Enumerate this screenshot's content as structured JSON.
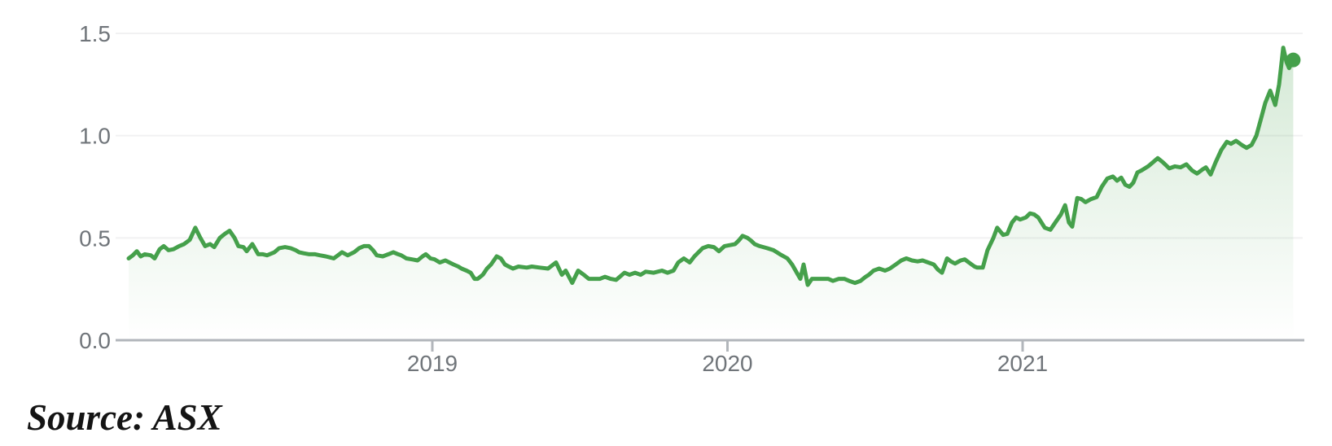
{
  "figure": {
    "source_note": "Source: ASX"
  },
  "chart_data": {
    "type": "line",
    "title": "",
    "xlabel": "",
    "ylabel": "",
    "x_tick_labels": [
      "2019",
      "2020",
      "2021"
    ],
    "x_tick_values": [
      2019,
      2020,
      2021
    ],
    "y_tick_labels": [
      "0.0",
      "0.5",
      "1.0",
      "1.5"
    ],
    "y_tick_values": [
      0,
      0.5,
      1.0,
      1.5
    ],
    "ylim": [
      0,
      1.5
    ],
    "xlim": [
      2017.95,
      2021.95
    ],
    "grid": true,
    "legend": false,
    "end_marker": {
      "x": 2021.917,
      "y": 1.37
    },
    "colors": {
      "line": "#45a04b",
      "fill_top": "rgba(69,160,75,0.24)",
      "fill_bottom": "rgba(69,160,75,0)",
      "grid": "#f1f1f2",
      "axis": "#b2b6bb",
      "tick_label": "#70757a",
      "source_text": "#141414"
    },
    "series": [
      {
        "points": [
          [
            2017.971,
            0.4
          ],
          [
            2017.985,
            0.415
          ],
          [
            2017.999,
            0.435
          ],
          [
            2018.012,
            0.41
          ],
          [
            2018.026,
            0.42
          ],
          [
            2018.046,
            0.415
          ],
          [
            2018.059,
            0.4
          ],
          [
            2018.076,
            0.445
          ],
          [
            2018.09,
            0.46
          ],
          [
            2018.106,
            0.44
          ],
          [
            2018.123,
            0.445
          ],
          [
            2018.142,
            0.46
          ],
          [
            2018.159,
            0.47
          ],
          [
            2018.178,
            0.49
          ],
          [
            2018.197,
            0.55
          ],
          [
            2018.214,
            0.5
          ],
          [
            2018.23,
            0.46
          ],
          [
            2018.247,
            0.47
          ],
          [
            2018.261,
            0.455
          ],
          [
            2018.28,
            0.5
          ],
          [
            2018.297,
            0.52
          ],
          [
            2018.313,
            0.535
          ],
          [
            2018.33,
            0.5
          ],
          [
            2018.343,
            0.46
          ],
          [
            2018.36,
            0.455
          ],
          [
            2018.371,
            0.435
          ],
          [
            2018.39,
            0.47
          ],
          [
            2018.41,
            0.42
          ],
          [
            2018.426,
            0.42
          ],
          [
            2018.44,
            0.415
          ],
          [
            2018.465,
            0.43
          ],
          [
            2018.481,
            0.45
          ],
          [
            2018.501,
            0.455
          ],
          [
            2018.52,
            0.45
          ],
          [
            2018.537,
            0.44
          ],
          [
            2018.548,
            0.43
          ],
          [
            2018.564,
            0.425
          ],
          [
            2018.583,
            0.42
          ],
          [
            2018.603,
            0.42
          ],
          [
            2018.619,
            0.415
          ],
          [
            2018.639,
            0.41
          ],
          [
            2018.652,
            0.405
          ],
          [
            2018.666,
            0.4
          ],
          [
            2018.68,
            0.415
          ],
          [
            2018.694,
            0.43
          ],
          [
            2018.713,
            0.415
          ],
          [
            2018.735,
            0.43
          ],
          [
            2018.752,
            0.45
          ],
          [
            2018.768,
            0.46
          ],
          [
            2018.785,
            0.46
          ],
          [
            2018.799,
            0.44
          ],
          [
            2018.812,
            0.415
          ],
          [
            2018.832,
            0.41
          ],
          [
            2018.851,
            0.42
          ],
          [
            2018.868,
            0.43
          ],
          [
            2018.884,
            0.42
          ],
          [
            2018.895,
            0.415
          ],
          [
            2018.912,
            0.4
          ],
          [
            2018.931,
            0.395
          ],
          [
            2018.95,
            0.39
          ],
          [
            2018.967,
            0.41
          ],
          [
            2018.978,
            0.42
          ],
          [
            2018.994,
            0.4
          ],
          [
            2019.008,
            0.395
          ],
          [
            2019.025,
            0.38
          ],
          [
            2019.044,
            0.39
          ],
          [
            2019.058,
            0.38
          ],
          [
            2019.072,
            0.37
          ],
          [
            2019.088,
            0.36
          ],
          [
            2019.099,
            0.35
          ],
          [
            2019.116,
            0.34
          ],
          [
            2019.13,
            0.33
          ],
          [
            2019.143,
            0.3
          ],
          [
            2019.154,
            0.3
          ],
          [
            2019.171,
            0.32
          ],
          [
            2019.185,
            0.35
          ],
          [
            2019.199,
            0.37
          ],
          [
            2019.218,
            0.41
          ],
          [
            2019.232,
            0.4
          ],
          [
            2019.246,
            0.37
          ],
          [
            2019.259,
            0.36
          ],
          [
            2019.273,
            0.35
          ],
          [
            2019.292,
            0.36
          ],
          [
            2019.32,
            0.355
          ],
          [
            2019.337,
            0.36
          ],
          [
            2019.364,
            0.355
          ],
          [
            2019.392,
            0.35
          ],
          [
            2019.419,
            0.38
          ],
          [
            2019.439,
            0.32
          ],
          [
            2019.452,
            0.34
          ],
          [
            2019.474,
            0.28
          ],
          [
            2019.494,
            0.34
          ],
          [
            2019.513,
            0.32
          ],
          [
            2019.53,
            0.3
          ],
          [
            2019.549,
            0.3
          ],
          [
            2019.568,
            0.3
          ],
          [
            2019.585,
            0.31
          ],
          [
            2019.604,
            0.3
          ],
          [
            2019.623,
            0.295
          ],
          [
            2019.651,
            0.33
          ],
          [
            2019.668,
            0.32
          ],
          [
            2019.687,
            0.33
          ],
          [
            2019.706,
            0.32
          ],
          [
            2019.723,
            0.335
          ],
          [
            2019.75,
            0.33
          ],
          [
            2019.778,
            0.34
          ],
          [
            2019.797,
            0.33
          ],
          [
            2019.817,
            0.34
          ],
          [
            2019.833,
            0.38
          ],
          [
            2019.852,
            0.4
          ],
          [
            2019.872,
            0.38
          ],
          [
            2019.888,
            0.41
          ],
          [
            2019.902,
            0.43
          ],
          [
            2019.916,
            0.45
          ],
          [
            2019.935,
            0.46
          ],
          [
            2019.954,
            0.455
          ],
          [
            2019.971,
            0.435
          ],
          [
            2019.99,
            0.46
          ],
          [
            2020.01,
            0.465
          ],
          [
            2020.026,
            0.47
          ],
          [
            2020.04,
            0.49
          ],
          [
            2020.051,
            0.51
          ],
          [
            2020.068,
            0.5
          ],
          [
            2020.081,
            0.485
          ],
          [
            2020.092,
            0.47
          ],
          [
            2020.109,
            0.46
          ],
          [
            2020.134,
            0.45
          ],
          [
            2020.156,
            0.44
          ],
          [
            2020.178,
            0.42
          ],
          [
            2020.203,
            0.4
          ],
          [
            2020.219,
            0.37
          ],
          [
            2020.239,
            0.32
          ],
          [
            2020.247,
            0.3
          ],
          [
            2020.258,
            0.37
          ],
          [
            2020.272,
            0.27
          ],
          [
            2020.286,
            0.3
          ],
          [
            2020.302,
            0.3
          ],
          [
            2020.321,
            0.3
          ],
          [
            2020.341,
            0.3
          ],
          [
            2020.357,
            0.29
          ],
          [
            2020.377,
            0.3
          ],
          [
            2020.396,
            0.3
          ],
          [
            2020.412,
            0.29
          ],
          [
            2020.432,
            0.28
          ],
          [
            2020.451,
            0.29
          ],
          [
            2020.468,
            0.31
          ],
          [
            2020.479,
            0.32
          ],
          [
            2020.495,
            0.34
          ],
          [
            2020.514,
            0.35
          ],
          [
            2020.534,
            0.34
          ],
          [
            2020.55,
            0.35
          ],
          [
            2020.57,
            0.37
          ],
          [
            2020.589,
            0.39
          ],
          [
            2020.606,
            0.4
          ],
          [
            2020.625,
            0.39
          ],
          [
            2020.644,
            0.385
          ],
          [
            2020.661,
            0.39
          ],
          [
            2020.68,
            0.38
          ],
          [
            2020.699,
            0.37
          ],
          [
            2020.713,
            0.345
          ],
          [
            2020.727,
            0.33
          ],
          [
            2020.744,
            0.4
          ],
          [
            2020.757,
            0.385
          ],
          [
            2020.771,
            0.375
          ],
          [
            2020.79,
            0.39
          ],
          [
            2020.804,
            0.395
          ],
          [
            2020.818,
            0.38
          ],
          [
            2020.837,
            0.36
          ],
          [
            2020.846,
            0.355
          ],
          [
            2020.865,
            0.355
          ],
          [
            2020.881,
            0.44
          ],
          [
            2020.901,
            0.5
          ],
          [
            2020.914,
            0.55
          ],
          [
            2020.934,
            0.515
          ],
          [
            2020.948,
            0.52
          ],
          [
            2020.964,
            0.575
          ],
          [
            2020.978,
            0.6
          ],
          [
            2020.992,
            0.59
          ],
          [
            2021.011,
            0.6
          ],
          [
            2021.025,
            0.62
          ],
          [
            2021.039,
            0.615
          ],
          [
            2021.053,
            0.6
          ],
          [
            2021.075,
            0.55
          ],
          [
            2021.094,
            0.54
          ],
          [
            2021.113,
            0.58
          ],
          [
            2021.13,
            0.615
          ],
          [
            2021.144,
            0.66
          ],
          [
            2021.157,
            0.575
          ],
          [
            2021.168,
            0.555
          ],
          [
            2021.185,
            0.695
          ],
          [
            2021.199,
            0.69
          ],
          [
            2021.213,
            0.675
          ],
          [
            2021.232,
            0.69
          ],
          [
            2021.251,
            0.7
          ],
          [
            2021.268,
            0.75
          ],
          [
            2021.287,
            0.79
          ],
          [
            2021.306,
            0.8
          ],
          [
            2021.32,
            0.78
          ],
          [
            2021.334,
            0.795
          ],
          [
            2021.348,
            0.76
          ],
          [
            2021.362,
            0.75
          ],
          [
            2021.375,
            0.77
          ],
          [
            2021.389,
            0.82
          ],
          [
            2021.403,
            0.83
          ],
          [
            2021.425,
            0.85
          ],
          [
            2021.442,
            0.87
          ],
          [
            2021.458,
            0.89
          ],
          [
            2021.475,
            0.87
          ],
          [
            2021.497,
            0.84
          ],
          [
            2021.516,
            0.85
          ],
          [
            2021.535,
            0.845
          ],
          [
            2021.555,
            0.86
          ],
          [
            2021.574,
            0.83
          ],
          [
            2021.591,
            0.815
          ],
          [
            2021.61,
            0.835
          ],
          [
            2021.621,
            0.845
          ],
          [
            2021.637,
            0.81
          ],
          [
            2021.654,
            0.87
          ],
          [
            2021.673,
            0.93
          ],
          [
            2021.692,
            0.97
          ],
          [
            2021.706,
            0.96
          ],
          [
            2021.723,
            0.975
          ],
          [
            2021.742,
            0.955
          ],
          [
            2021.759,
            0.94
          ],
          [
            2021.776,
            0.955
          ],
          [
            2021.792,
            1.0
          ],
          [
            2021.809,
            1.09
          ],
          [
            2021.822,
            1.16
          ],
          [
            2021.839,
            1.22
          ],
          [
            2021.856,
            1.15
          ],
          [
            2021.869,
            1.25
          ],
          [
            2021.883,
            1.43
          ],
          [
            2021.894,
            1.36
          ],
          [
            2021.903,
            1.33
          ],
          [
            2021.917,
            1.37
          ]
        ]
      }
    ]
  }
}
